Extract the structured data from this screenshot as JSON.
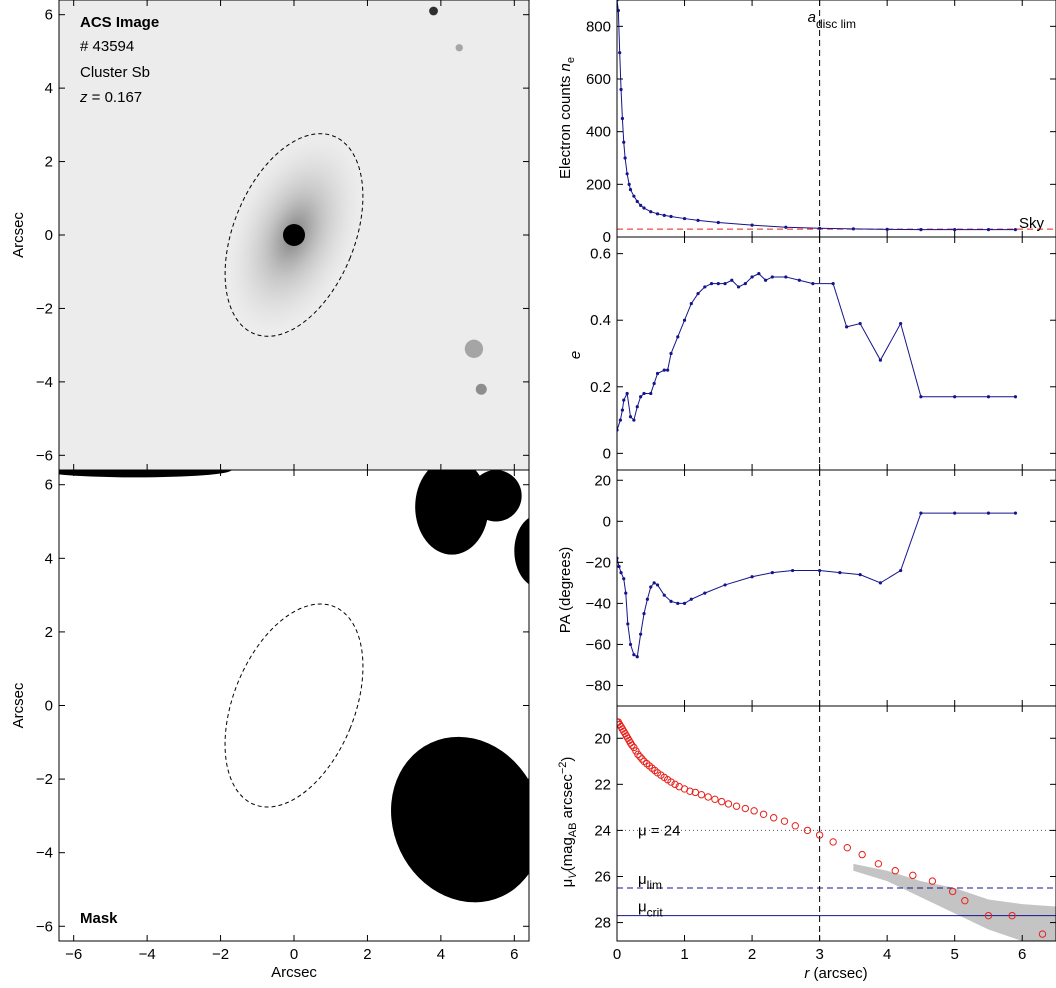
{
  "chart_data": [
    {
      "type": "image",
      "info": {
        "title": "ACS Image",
        "id": "# 43594",
        "class": "Cluster Sb",
        "z_label": "z",
        "z_value": " = 0.167"
      },
      "xlabel": "",
      "ylabel": "Arcsec",
      "xlim": [
        -6.4,
        6.4
      ],
      "ylim": [
        -6.4,
        6.4
      ],
      "yticks": [
        -6,
        -4,
        -2,
        0,
        2,
        4,
        6
      ],
      "aperture": {
        "cx": 0.0,
        "cy": 0.0,
        "a": 2.9,
        "b": 1.65,
        "pa_deg": -22
      },
      "sources": [
        {
          "x": 0,
          "y": 0,
          "r": 0.3,
          "dark": 1.0
        },
        {
          "x": 3.8,
          "y": 6.1,
          "r": 0.12,
          "dark": 0.8
        },
        {
          "x": 4.5,
          "y": 5.1,
          "r": 0.1,
          "dark": 0.3
        },
        {
          "x": 4.9,
          "y": -3.1,
          "r": 0.25,
          "dark": 0.3
        },
        {
          "x": 5.1,
          "y": -4.2,
          "r": 0.15,
          "dark": 0.4
        }
      ]
    },
    {
      "type": "mask",
      "label": "Mask",
      "xlabel": "Arcsec",
      "ylabel": "Arcsec",
      "xlim": [
        -6.4,
        6.4
      ],
      "ylim": [
        -6.4,
        6.4
      ],
      "xticks": [
        -6,
        -4,
        -2,
        0,
        2,
        4,
        6
      ],
      "yticks": [
        -6,
        -4,
        -2,
        0,
        2,
        4,
        6
      ],
      "aperture": {
        "cx": 0.0,
        "cy": 0.0,
        "a": 2.9,
        "b": 1.65,
        "pa_deg": -22
      },
      "blobs": [
        {
          "cx": 4.3,
          "cy": 5.4,
          "rx": 1.0,
          "ry": 1.3,
          "rot": 0
        },
        {
          "cx": 5.5,
          "cy": 5.7,
          "rx": 0.7,
          "ry": 0.7,
          "rot": 0
        },
        {
          "cx": 6.7,
          "cy": 4.2,
          "rx": 0.7,
          "ry": 1.0,
          "rot": 0
        },
        {
          "cx": 4.7,
          "cy": -3.1,
          "rx": 2.0,
          "ry": 2.3,
          "rot": -25
        },
        {
          "cx": -4.3,
          "cy": 6.4,
          "rx": 2.6,
          "ry": 0.2,
          "rot": 0
        }
      ]
    },
    {
      "type": "line",
      "ylabel": "Electron counts n",
      "ylabel_sub": "e",
      "xlim": [
        0,
        6.5
      ],
      "ylim": [
        0,
        900
      ],
      "yticks": [
        0,
        200,
        400,
        600,
        800
      ],
      "vline": {
        "x": 3.0,
        "label": "a",
        "label_sub": "disc lim"
      },
      "hline": {
        "y": 30,
        "label": "Sky",
        "color": "#e8201a"
      },
      "series": [
        {
          "color": "#14148c",
          "x": [
            0,
            0.02,
            0.04,
            0.06,
            0.08,
            0.1,
            0.12,
            0.15,
            0.18,
            0.2,
            0.25,
            0.3,
            0.35,
            0.4,
            0.5,
            0.6,
            0.7,
            0.8,
            1.0,
            1.2,
            1.5,
            2.0,
            2.5,
            3.0,
            3.5,
            4.0,
            4.5,
            5.0,
            5.5,
            5.9
          ],
          "y": [
            900,
            860,
            700,
            560,
            450,
            360,
            300,
            240,
            200,
            180,
            155,
            135,
            120,
            110,
            96,
            88,
            82,
            78,
            70,
            63,
            55,
            45,
            37,
            33,
            31,
            29,
            28,
            28,
            28,
            28
          ]
        }
      ]
    },
    {
      "type": "line",
      "ylabel": "e",
      "xlim": [
        0,
        6.5
      ],
      "ylim": [
        -0.05,
        0.65
      ],
      "yticks": [
        0,
        0.2,
        0.4,
        0.6
      ],
      "vline": {
        "x": 3.0
      },
      "series": [
        {
          "color": "#14148c",
          "x": [
            0,
            0.05,
            0.08,
            0.1,
            0.15,
            0.2,
            0.25,
            0.3,
            0.35,
            0.4,
            0.5,
            0.55,
            0.6,
            0.7,
            0.75,
            0.8,
            0.9,
            1.0,
            1.1,
            1.2,
            1.3,
            1.4,
            1.5,
            1.6,
            1.7,
            1.8,
            1.9,
            2.0,
            2.1,
            2.2,
            2.3,
            2.5,
            2.7,
            2.9,
            3.2,
            3.4,
            3.6,
            3.9,
            4.2,
            4.5,
            5.0,
            5.5,
            5.9
          ],
          "y": [
            0.07,
            0.1,
            0.13,
            0.16,
            0.18,
            0.11,
            0.1,
            0.14,
            0.17,
            0.18,
            0.18,
            0.21,
            0.24,
            0.25,
            0.25,
            0.3,
            0.35,
            0.4,
            0.45,
            0.48,
            0.5,
            0.51,
            0.51,
            0.51,
            0.52,
            0.5,
            0.51,
            0.53,
            0.54,
            0.52,
            0.53,
            0.53,
            0.52,
            0.51,
            0.51,
            0.38,
            0.39,
            0.28,
            0.39,
            0.17,
            0.17,
            0.17,
            0.17
          ]
        }
      ]
    },
    {
      "type": "line",
      "ylabel": "PA (degrees)",
      "xlim": [
        0,
        6.5
      ],
      "ylim": [
        -90,
        25
      ],
      "yticks": [
        -80,
        -60,
        -40,
        -20,
        0,
        20
      ],
      "vline": {
        "x": 3.0
      },
      "series": [
        {
          "color": "#14148c",
          "x": [
            0,
            0.03,
            0.06,
            0.1,
            0.13,
            0.16,
            0.2,
            0.25,
            0.3,
            0.35,
            0.4,
            0.45,
            0.5,
            0.55,
            0.6,
            0.7,
            0.8,
            0.9,
            1.0,
            1.1,
            1.3,
            1.6,
            2.0,
            2.3,
            2.6,
            3.0,
            3.3,
            3.6,
            3.9,
            4.2,
            4.5,
            5.0,
            5.5,
            5.9
          ],
          "y": [
            -18,
            -22,
            -25,
            -28,
            -35,
            -50,
            -60,
            -65,
            -66,
            -55,
            -45,
            -38,
            -32,
            -30,
            -31,
            -36,
            -39,
            -40,
            -40,
            -38,
            -35,
            -31,
            -27,
            -25,
            -24,
            -24,
            -25,
            -26,
            -30,
            -24,
            4,
            4,
            4,
            4
          ]
        }
      ]
    },
    {
      "type": "scatter",
      "ylabel": "μ",
      "ylabel_sub": "V",
      "ylabel_rest": "(mag",
      "ylabel_sub2": "AB",
      "ylabel_rest2": " arcsec",
      "ylabel_sup": "−2",
      "ylabel_end": ")",
      "xlabel": "r (arcsec)",
      "xlim": [
        0,
        6.5
      ],
      "ylim": [
        28.8,
        18.6
      ],
      "xticks": [
        0,
        1,
        2,
        3,
        4,
        5,
        6
      ],
      "yticks": [
        20,
        22,
        24,
        26,
        28
      ],
      "vline": {
        "x": 3.0
      },
      "hlines": [
        {
          "y": 24.0,
          "label": "μ = 24",
          "style": "dotted",
          "color": "#555555"
        },
        {
          "y": 26.5,
          "label": "μ",
          "label_sub": "lim",
          "style": "dashed",
          "color": "#14148c"
        },
        {
          "y": 27.7,
          "label": "μ",
          "label_sub": "crit",
          "style": "solid",
          "color": "#14148c"
        }
      ],
      "series": [
        {
          "color": "#e8201a",
          "x": [
            0.0,
            0.02,
            0.04,
            0.06,
            0.08,
            0.1,
            0.12,
            0.14,
            0.16,
            0.18,
            0.2,
            0.22,
            0.25,
            0.28,
            0.31,
            0.34,
            0.37,
            0.4,
            0.44,
            0.48,
            0.52,
            0.56,
            0.6,
            0.65,
            0.7,
            0.75,
            0.8,
            0.86,
            0.92,
            1.0,
            1.08,
            1.16,
            1.25,
            1.35,
            1.45,
            1.55,
            1.65,
            1.77,
            1.9,
            2.03,
            2.17,
            2.32,
            2.48,
            2.64,
            2.82,
            3.0,
            3.2,
            3.41,
            3.63,
            3.87,
            4.12,
            4.38,
            4.67,
            4.97,
            5.15,
            5.5,
            5.85,
            6.3
          ],
          "y": [
            19.3,
            19.3,
            19.4,
            19.5,
            19.6,
            19.7,
            19.8,
            19.9,
            20.0,
            20.1,
            20.2,
            20.3,
            20.4,
            20.55,
            20.7,
            20.8,
            20.9,
            21.0,
            21.1,
            21.2,
            21.3,
            21.4,
            21.5,
            21.6,
            21.7,
            21.8,
            21.9,
            22.0,
            22.1,
            22.2,
            22.3,
            22.35,
            22.45,
            22.55,
            22.65,
            22.75,
            22.85,
            22.95,
            23.05,
            23.15,
            23.3,
            23.45,
            23.6,
            23.8,
            24.0,
            24.2,
            24.5,
            24.75,
            25.05,
            25.45,
            25.75,
            25.95,
            26.2,
            26.65,
            27.05,
            27.7,
            27.7,
            28.5
          ],
          "band_x": [
            3.5,
            4.0,
            4.5,
            5.0,
            5.5,
            6.0,
            6.5
          ],
          "band_lo": [
            25.45,
            25.75,
            26.2,
            26.5,
            27.0,
            27.2,
            27.3
          ],
          "band_hi": [
            25.75,
            26.2,
            26.9,
            27.6,
            28.3,
            28.8,
            28.8
          ]
        }
      ]
    }
  ]
}
